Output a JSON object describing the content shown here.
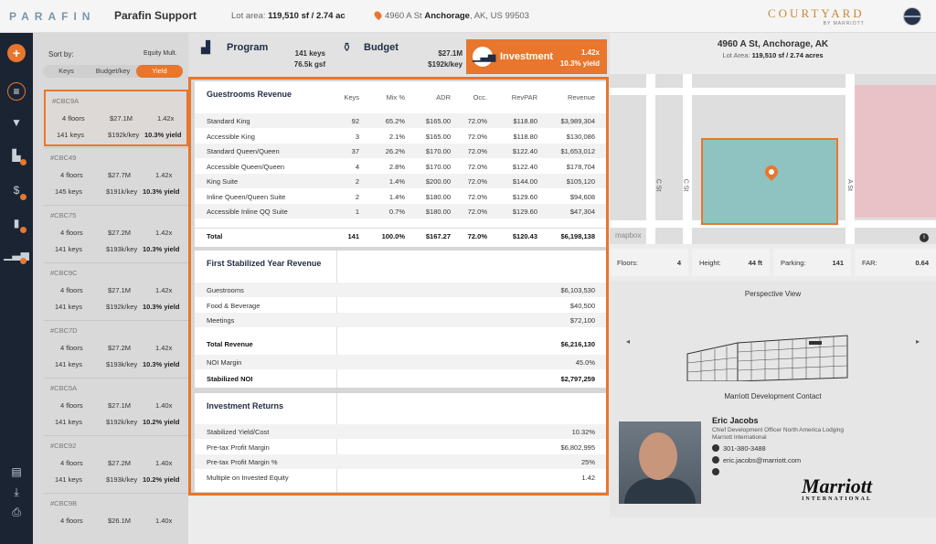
{
  "topbar": {
    "logo": "PARAFIN",
    "title": "Parafin Support",
    "lot_label": "Lot area:",
    "lot_value": "119,510 sf / 2.74 ac",
    "address_pre": "4960 A St",
    "address_bold": "Anchorage",
    "address_post": ", AK, US 99503",
    "brand": "COURTYARD",
    "brand_sub": "BY MARRIOTT"
  },
  "sidebar": {
    "sort_label": "Sort by:",
    "equity_label": "Equity Mult.",
    "sort_options": [
      "Keys",
      "Budget/key",
      "Yield"
    ],
    "cards": [
      {
        "id": "#CBC9A",
        "floors": "4 floors",
        "budget": "$27.1M",
        "mult": "1.42x",
        "keys": "141 keys",
        "per_key": "$192k/key",
        "yield": "10.3% yield"
      },
      {
        "id": "#CBC49",
        "floors": "4 floors",
        "budget": "$27.7M",
        "mult": "1.42x",
        "keys": "145 keys",
        "per_key": "$191k/key",
        "yield": "10.3% yield"
      },
      {
        "id": "#CBC75",
        "floors": "4 floors",
        "budget": "$27.2M",
        "mult": "1.42x",
        "keys": "141 keys",
        "per_key": "$193k/key",
        "yield": "10.3% yield"
      },
      {
        "id": "#CBC9C",
        "floors": "4 floors",
        "budget": "$27.1M",
        "mult": "1.42x",
        "keys": "141 keys",
        "per_key": "$192k/key",
        "yield": "10.3% yield"
      },
      {
        "id": "#CBC7D",
        "floors": "4 floors",
        "budget": "$27.2M",
        "mult": "1.42x",
        "keys": "141 keys",
        "per_key": "$193k/key",
        "yield": "10.3% yield"
      },
      {
        "id": "#CBC5A",
        "floors": "4 floors",
        "budget": "$27.1M",
        "mult": "1.40x",
        "keys": "141 keys",
        "per_key": "$192k/key",
        "yield": "10.2% yield"
      },
      {
        "id": "#CBC92",
        "floors": "4 floors",
        "budget": "$27.2M",
        "mult": "1.40x",
        "keys": "141 keys",
        "per_key": "$193k/key",
        "yield": "10.2% yield"
      },
      {
        "id": "#CBC9B",
        "floors": "4 floors",
        "budget": "$26.1M",
        "mult": "1.40x",
        "keys": "",
        "per_key": "",
        "yield": ""
      }
    ]
  },
  "header": {
    "program_label": "Program",
    "program_keys": "141 keys",
    "program_gsf": "76.5k gsf",
    "budget_label": "Budget",
    "budget_total": "$27.1M",
    "budget_per_key": "$192k/key",
    "investment_label": "Investment",
    "investment_mult": "1.42x",
    "investment_yield": "10.3% yield"
  },
  "guestrooms": {
    "title": "Guestrooms Revenue",
    "columns": [
      "Keys",
      "Mix %",
      "ADR",
      "Occ.",
      "RevPAR",
      "Revenue"
    ],
    "rows": [
      {
        "name": "Standard King",
        "keys": "92",
        "mix": "65.2%",
        "adr": "$165.00",
        "occ": "72.0%",
        "revpar": "$118.80",
        "revenue": "$3,989,304"
      },
      {
        "name": "Accessible King",
        "keys": "3",
        "mix": "2.1%",
        "adr": "$165.00",
        "occ": "72.0%",
        "revpar": "$118.80",
        "revenue": "$130,086"
      },
      {
        "name": "Standard Queen/Queen",
        "keys": "37",
        "mix": "26.2%",
        "adr": "$170.00",
        "occ": "72.0%",
        "revpar": "$122.40",
        "revenue": "$1,653,012"
      },
      {
        "name": "Accessible Queen/Queen",
        "keys": "4",
        "mix": "2.8%",
        "adr": "$170.00",
        "occ": "72.0%",
        "revpar": "$122.40",
        "revenue": "$178,704"
      },
      {
        "name": "King Suite",
        "keys": "2",
        "mix": "1.4%",
        "adr": "$200.00",
        "occ": "72.0%",
        "revpar": "$144.00",
        "revenue": "$105,120"
      },
      {
        "name": "Inline Queen/Queen Suite",
        "keys": "2",
        "mix": "1.4%",
        "adr": "$180.00",
        "occ": "72.0%",
        "revpar": "$129.60",
        "revenue": "$94,608"
      },
      {
        "name": "Accessible Inline QQ Suite",
        "keys": "1",
        "mix": "0.7%",
        "adr": "$180.00",
        "occ": "72.0%",
        "revpar": "$129.60",
        "revenue": "$47,304"
      }
    ],
    "total": {
      "name": "Total",
      "keys": "141",
      "mix": "100.0%",
      "adr": "$167.27",
      "occ": "72.0%",
      "revpar": "$120.43",
      "revenue": "$6,198,138"
    }
  },
  "stabilized": {
    "title": "First Stabilized Year Revenue",
    "rows": [
      {
        "name": "Guestrooms",
        "value": "$6,103,530"
      },
      {
        "name": "Food & Beverage",
        "value": "$40,500"
      },
      {
        "name": "Meetings",
        "value": "$72,100"
      }
    ],
    "total_revenue_label": "Total Revenue",
    "total_revenue": "$6,216,130",
    "noi_margin_label": "NOI Margin",
    "noi_margin": "45.0%",
    "stabilized_noi_label": "Stabilized NOI",
    "stabilized_noi": "$2,797,259"
  },
  "returns": {
    "title": "Investment Returns",
    "rows": [
      {
        "name": "Stabilized Yield/Cost",
        "value": "10.32%"
      },
      {
        "name": "Pre-tax Profit Margin",
        "value": "$6,802,995"
      },
      {
        "name": "Pre-tax Profit Margin %",
        "value": "25%"
      },
      {
        "name": "Multiple on Invested Equity",
        "value": "1.42"
      }
    ]
  },
  "site": {
    "address": "4960 A St, Anchorage, AK",
    "lot_label": "Lot Area:",
    "lot_value": "119,510 sf / 2.74 acres",
    "map_attribution": "mapbox",
    "road_c": "C St",
    "road_a": "A St",
    "floors_label": "Floors:",
    "floors": "4",
    "height_label": "Height:",
    "height": "44 ft",
    "parking_label": "Parking:",
    "parking": "141",
    "far_label": "FAR:",
    "far": "0.64",
    "perspective_title": "Perspective View"
  },
  "contact": {
    "title": "Marriott Development Contact",
    "name": "Eric Jacobs",
    "role": "Chief Development Officer North America Lodging",
    "company": "Marriott International",
    "phone": "301-380-3488",
    "email": "eric.jacobs@marriott.com",
    "logo_text": "Marriott",
    "logo_sub": "INTERNATIONAL"
  }
}
